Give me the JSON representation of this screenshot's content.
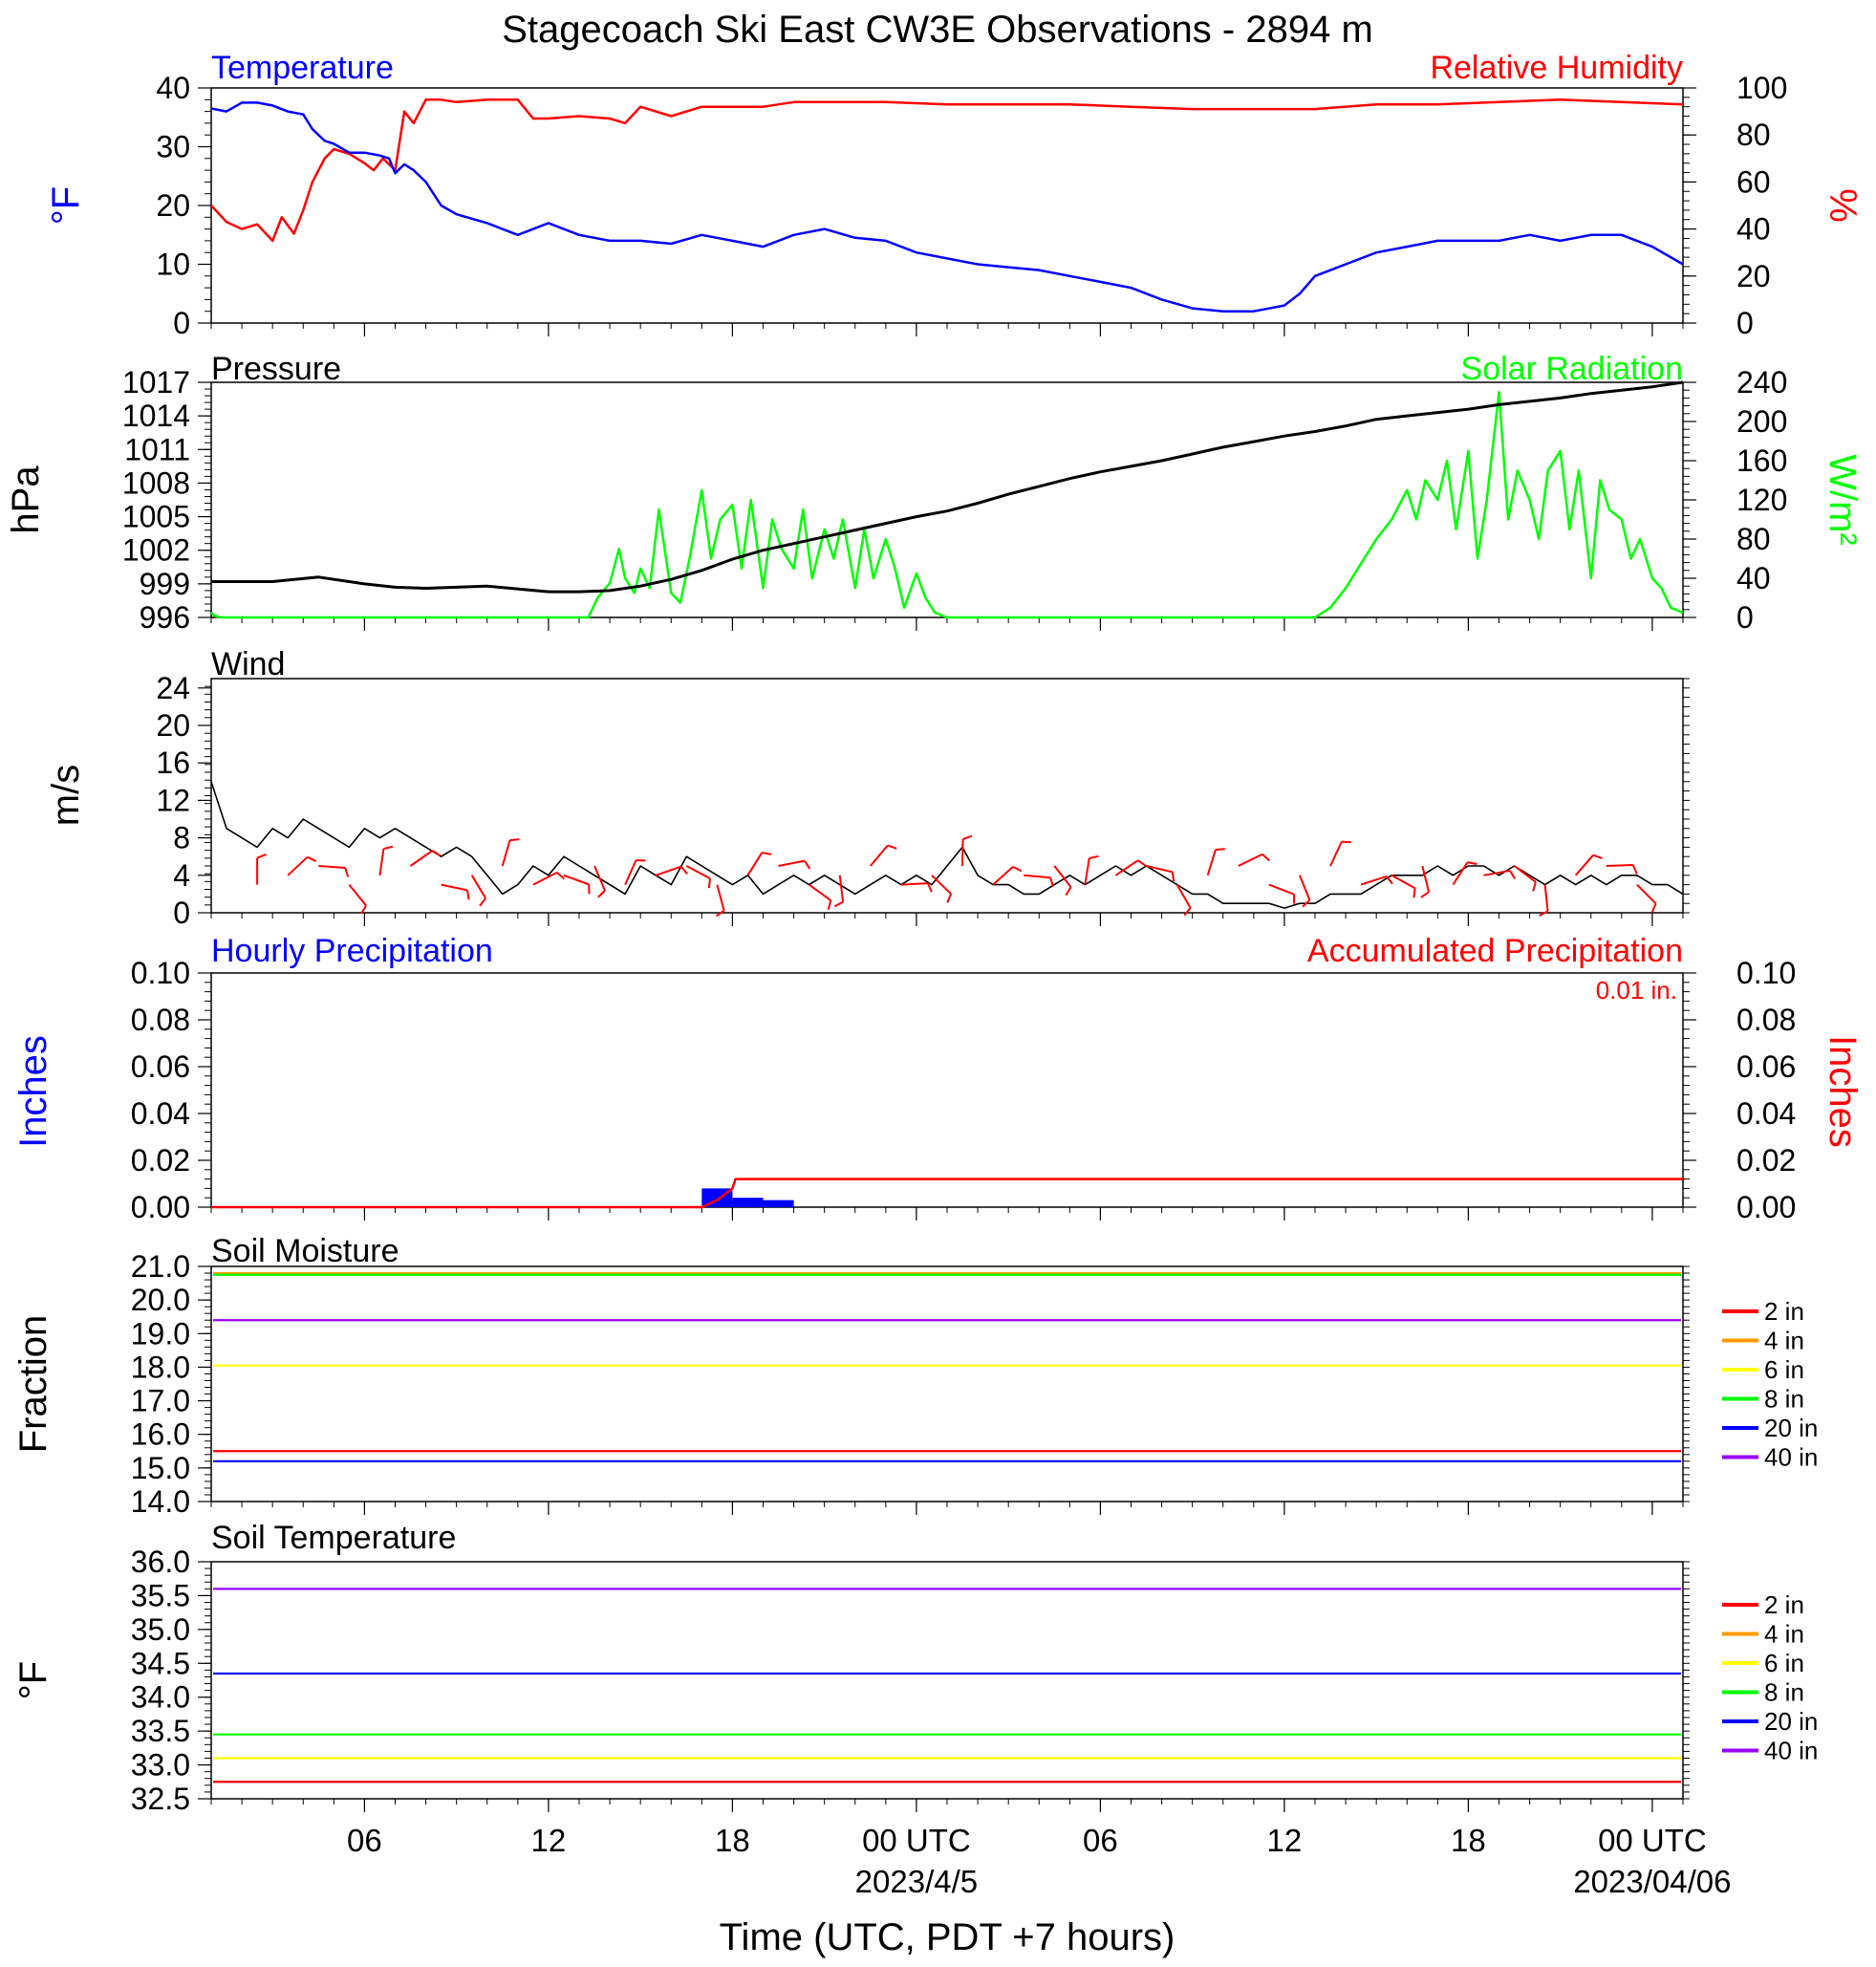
{
  "figure": {
    "title": "Stagecoach Ski East CW3E Observations - 2894 m",
    "xlabel": "Time (UTC, PDT +7 hours)"
  },
  "x_axis": {
    "unit": "hours since first tick origin",
    "range": [
      0,
      48
    ],
    "ticks": [
      {
        "h": 5,
        "label": "06",
        "sub": ""
      },
      {
        "h": 11,
        "label": "12",
        "sub": ""
      },
      {
        "h": 17,
        "label": "18",
        "sub": ""
      },
      {
        "h": 23,
        "label": "00 UTC",
        "sub": "2023/4/5"
      },
      {
        "h": 29,
        "label": "06",
        "sub": ""
      },
      {
        "h": 35,
        "label": "12",
        "sub": ""
      },
      {
        "h": 41,
        "label": "18",
        "sub": ""
      },
      {
        "h": 47,
        "label": "00 UTC",
        "sub": "2023/04/06"
      }
    ]
  },
  "colors": {
    "temperature": "#0000ff",
    "humidity": "#ff0000",
    "pressure": "#000000",
    "solar": "#00ff00",
    "wind": "#000000",
    "wind_barb": "#ff0000",
    "hourly_precip": "#0000ff",
    "accum_precip": "#ff0000",
    "soil": {
      "2 in": "#ff0000",
      "4 in": "#ff9900",
      "6 in": "#ffff00",
      "8 in": "#00ff00",
      "20 in": "#0000ff",
      "40 in": "#9900ff"
    }
  },
  "chart_data": [
    {
      "type": "line",
      "panel": "temp_rh",
      "title_left": "Temperature",
      "title_right": "Relative Humidity",
      "ylabel_left": "°F",
      "ylabel_right": "%",
      "ylim_left": [
        0,
        40
      ],
      "yticks_left": [
        "0",
        "10",
        "20",
        "30",
        "40"
      ],
      "ylim_right": [
        0,
        100
      ],
      "yticks_right": [
        "0",
        "20",
        "40",
        "60",
        "80",
        "100"
      ],
      "series": [
        {
          "name": "Temperature",
          "axis": "left",
          "x": [
            0,
            0.5,
            1,
            1.5,
            2,
            2.5,
            3,
            3.3,
            3.7,
            4,
            4.5,
            5,
            5.5,
            5.8,
            6,
            6.3,
            6.6,
            7,
            7.5,
            8,
            9,
            10,
            11,
            12,
            13,
            14,
            15,
            16,
            17,
            18,
            19,
            20,
            21,
            22,
            23,
            24,
            25,
            26,
            27,
            28,
            29,
            30,
            31,
            32,
            33,
            33.5,
            34,
            35,
            35.5,
            36,
            37,
            38,
            39,
            40,
            41,
            42,
            43,
            44,
            45,
            46,
            47,
            48
          ],
          "y": [
            36.5,
            36,
            37.5,
            37.5,
            37,
            36,
            35.5,
            33,
            31,
            30.5,
            29,
            29,
            28.5,
            28,
            25.5,
            27,
            26,
            24,
            20,
            18.5,
            17,
            15,
            17,
            15,
            14,
            14,
            13.5,
            15,
            14,
            13,
            15,
            16,
            14.5,
            14,
            12,
            11,
            10,
            9.5,
            9,
            8,
            7,
            6,
            4,
            2.5,
            2,
            2,
            2,
            3,
            5,
            8,
            10,
            12,
            13,
            14,
            14,
            14,
            15,
            14,
            15,
            15,
            13,
            10
          ]
        },
        {
          "name": "Relative Humidity",
          "axis": "right",
          "x": [
            0,
            0.5,
            1,
            1.5,
            2,
            2.3,
            2.7,
            3,
            3.3,
            3.7,
            4,
            4.5,
            5,
            5.3,
            5.6,
            6,
            6.3,
            6.6,
            7,
            7.5,
            8,
            9,
            10,
            10.5,
            11,
            12,
            13,
            13.5,
            14,
            15,
            16,
            17,
            18,
            19,
            20,
            22,
            24,
            26,
            28,
            30,
            32,
            33,
            34,
            36,
            38,
            40,
            42,
            44,
            46,
            48
          ],
          "y": [
            50,
            43,
            40,
            42,
            35,
            45,
            38,
            48,
            60,
            70,
            74,
            72,
            68,
            65,
            70,
            65,
            90,
            85,
            95,
            95,
            94,
            95,
            95,
            87,
            87,
            88,
            87,
            85,
            92,
            88,
            92,
            92,
            92,
            94,
            94,
            94,
            93,
            93,
            93,
            92,
            91,
            91,
            91,
            91,
            93,
            93,
            94,
            95,
            94,
            93
          ]
        }
      ]
    },
    {
      "type": "line",
      "panel": "pressure_solar",
      "title_left": "Pressure",
      "title_right": "Solar Radiation",
      "ylabel_left": "hPa",
      "ylabel_right": "W/m²",
      "ylim_left": [
        996,
        1017
      ],
      "yticks_left": [
        "996",
        "999",
        "1002",
        "1005",
        "1008",
        "1011",
        "1014",
        "1017"
      ],
      "ylim_right": [
        0,
        240
      ],
      "yticks_right": [
        "0",
        "40",
        "80",
        "120",
        "160",
        "200",
        "240"
      ],
      "series": [
        {
          "name": "Pressure",
          "axis": "left",
          "x": [
            0,
            2,
            3.5,
            5,
            6,
            7,
            9,
            11,
            12,
            13,
            14,
            15,
            16,
            17,
            18,
            19,
            20,
            21,
            22,
            23,
            24,
            25,
            26,
            27,
            28,
            29,
            30,
            31,
            32,
            33,
            34,
            35,
            36,
            37,
            38,
            39,
            40,
            41,
            42,
            43,
            44,
            45,
            46,
            47,
            48
          ],
          "y": [
            999.2,
            999.2,
            999.6,
            999,
            998.7,
            998.6,
            998.8,
            998.3,
            998.3,
            998.4,
            998.8,
            999.4,
            1000.2,
            1001.2,
            1002,
            1002.6,
            1003.2,
            1003.8,
            1004.4,
            1005,
            1005.5,
            1006.2,
            1007,
            1007.7,
            1008.4,
            1009,
            1009.5,
            1010,
            1010.6,
            1011.2,
            1011.7,
            1012.2,
            1012.6,
            1013.1,
            1013.7,
            1014,
            1014.3,
            1014.6,
            1015,
            1015.3,
            1015.6,
            1016,
            1016.3,
            1016.6,
            1017
          ]
        },
        {
          "name": "Solar Radiation",
          "axis": "right",
          "x": [
            0,
            0.1,
            0.3,
            12.3,
            12.6,
            13,
            13.3,
            13.5,
            13.8,
            14,
            14.3,
            14.6,
            15,
            15.3,
            15.6,
            16,
            16.3,
            16.6,
            17,
            17.3,
            17.6,
            18,
            18.3,
            18.6,
            19,
            19.3,
            19.6,
            20,
            20.3,
            20.6,
            21,
            21.3,
            21.6,
            22,
            22.3,
            22.6,
            23,
            23.3,
            23.6,
            24,
            24.4,
            30,
            36,
            36.5,
            37,
            37.5,
            38,
            38.5,
            39,
            39.3,
            39.6,
            40,
            40.3,
            40.6,
            41,
            41.3,
            41.6,
            42,
            42.3,
            42.6,
            43,
            43.3,
            43.6,
            44,
            44.3,
            44.6,
            45,
            45.3,
            45.6,
            46,
            46.3,
            46.6,
            47,
            47.3,
            47.6,
            48
          ],
          "y": [
            5,
            2,
            0,
            0,
            20,
            35,
            70,
            40,
            25,
            50,
            30,
            110,
            25,
            15,
            60,
            130,
            60,
            100,
            115,
            50,
            120,
            30,
            100,
            70,
            50,
            110,
            40,
            90,
            60,
            100,
            30,
            90,
            40,
            80,
            50,
            10,
            45,
            20,
            5,
            0,
            0,
            0,
            0,
            10,
            30,
            55,
            80,
            100,
            130,
            100,
            140,
            120,
            160,
            90,
            170,
            60,
            120,
            230,
            100,
            150,
            120,
            80,
            150,
            170,
            90,
            150,
            40,
            140,
            110,
            100,
            60,
            80,
            40,
            30,
            10,
            5
          ]
        },
        {
          "name": "",
          "axis": "none",
          "x": [],
          "y": []
        }
      ]
    },
    {
      "type": "line",
      "panel": "wind",
      "title_left": "Wind",
      "ylabel_left": "m/s",
      "ylim_left": [
        0,
        25
      ],
      "yticks_left": [
        "0",
        "4",
        "8",
        "12",
        "16",
        "20",
        "24"
      ],
      "series": [
        {
          "name": "Wind",
          "axis": "left",
          "x": [
            0,
            0.5,
            1,
            1.5,
            2,
            2.5,
            3,
            3.5,
            4,
            4.5,
            5,
            5.5,
            6,
            6.5,
            7,
            7.5,
            8,
            8.5,
            9,
            9.5,
            10,
            10.5,
            11,
            11.5,
            12,
            12.5,
            13,
            13.5,
            14,
            14.5,
            15,
            15.5,
            16,
            16.5,
            17,
            17.5,
            18,
            18.5,
            19,
            19.5,
            20,
            20.5,
            21,
            21.5,
            22,
            22.5,
            23,
            23.5,
            24,
            24.5,
            25,
            25.5,
            26,
            26.5,
            27,
            27.5,
            28,
            28.5,
            29,
            29.5,
            30,
            30.5,
            31,
            31.5,
            32,
            32.5,
            33,
            33.5,
            34,
            34.5,
            35,
            35.5,
            36,
            36.5,
            37,
            37.5,
            38,
            38.5,
            39,
            39.5,
            40,
            40.5,
            41,
            41.5,
            42,
            42.5,
            43,
            43.5,
            44,
            44.5,
            45,
            45.5,
            46,
            46.5,
            47,
            47.5,
            48
          ],
          "y": [
            14,
            9,
            8,
            7,
            9,
            8,
            10,
            9,
            8,
            7,
            9,
            8,
            9,
            8,
            7,
            6,
            7,
            6,
            4,
            2,
            3,
            5,
            4,
            6,
            5,
            4,
            3,
            2,
            5,
            4,
            3,
            6,
            5,
            4,
            3,
            4,
            2,
            3,
            4,
            3,
            4,
            3,
            2,
            3,
            4,
            3,
            4,
            3,
            5,
            7,
            4,
            3,
            3,
            2,
            2,
            3,
            4,
            3,
            4,
            5,
            4,
            5,
            4,
            3,
            2,
            2,
            1,
            1,
            1,
            1,
            0.5,
            1,
            1,
            2,
            2,
            2,
            3,
            4,
            4,
            4,
            5,
            4,
            5,
            5,
            4,
            5,
            4,
            3,
            4,
            3,
            4,
            3,
            4,
            4,
            3,
            3,
            2
          ]
        },
        {
          "name": "",
          "axis": "none",
          "x": [],
          "y": []
        }
      ],
      "barbs": {
        "x": [
          1.5,
          2.5,
          3.5,
          4.5,
          5.5,
          6.5,
          7.5,
          8.5,
          9.5,
          10.5,
          11.5,
          12.5,
          13.5,
          14.5,
          15.5,
          16.5,
          17.5,
          18.5,
          19.5,
          20.5,
          21.5,
          22.5,
          23.5,
          24.5,
          25.5,
          26.5,
          27.5,
          28.5,
          29.5,
          30.5,
          31.5,
          32.5,
          33.5,
          34.5,
          35.5,
          36.5,
          37.5,
          38.5,
          39.5,
          40.5,
          41.5,
          42.5,
          43.5,
          44.5,
          45.5,
          46.5
        ]
      }
    },
    {
      "type": "bar",
      "panel": "precip",
      "title_left": "Hourly Precipitation",
      "title_right": "Accumulated Precipitation",
      "total_label": "0.01 in.",
      "ylabel_left": "Inches",
      "ylabel_right": "Inches",
      "ylim": [
        0,
        0.1
      ],
      "yticks": [
        "0.00",
        "0.02",
        "0.04",
        "0.06",
        "0.08",
        "0.10"
      ],
      "hourly": {
        "x": [
          16,
          17,
          18
        ],
        "values": [
          0.008,
          0.004,
          0.003
        ]
      },
      "accumulated": {
        "x": [
          0,
          16,
          16.5,
          17,
          17.1,
          48
        ],
        "y": [
          0,
          0,
          0.003,
          0.008,
          0.012,
          0.012
        ]
      }
    },
    {
      "type": "line",
      "panel": "soil_moisture",
      "title_left": "Soil Moisture",
      "ylabel_left": "Fraction",
      "ylim_left": [
        14,
        21
      ],
      "yticks_left": [
        "14.0",
        "15.0",
        "16.0",
        "17.0",
        "18.0",
        "19.0",
        "20.0",
        "21.0"
      ],
      "series": [
        {
          "name": "2 in",
          "value": 15.5
        },
        {
          "name": "4 in",
          "value": 20.8
        },
        {
          "name": "6 in",
          "value": 18.05
        },
        {
          "name": "8 in",
          "value": 20.75
        },
        {
          "name": "20 in",
          "value": 15.2
        },
        {
          "name": "40 in",
          "value": 19.4
        }
      ]
    },
    {
      "type": "line",
      "panel": "soil_temperature",
      "title_left": "Soil Temperature",
      "ylabel_left": "°F",
      "ylim_left": [
        32.5,
        36
      ],
      "yticks_left": [
        "32.5",
        "33.0",
        "33.5",
        "34.0",
        "34.5",
        "35.0",
        "35.5",
        "36.0"
      ],
      "series": [
        {
          "name": "2 in",
          "value": 32.75
        },
        {
          "name": "4 in",
          "value": null
        },
        {
          "name": "6 in",
          "value": 33.1
        },
        {
          "name": "8 in",
          "value": 33.45
        },
        {
          "name": "20 in",
          "value": 34.35
        },
        {
          "name": "40 in",
          "value": 35.6
        }
      ]
    }
  ]
}
